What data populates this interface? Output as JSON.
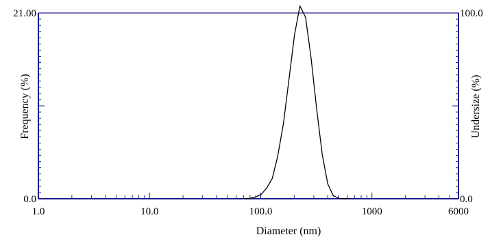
{
  "chart_data": {
    "type": "line",
    "title": "",
    "xlabel": "Diameter (nm)",
    "ylabel_left": "Frequency (%)",
    "ylabel_right": "Undersize (%)",
    "x_scale": "log",
    "xlim": [
      1.0,
      6000
    ],
    "ylim_left": [
      0.0,
      21.0
    ],
    "ylim_right": [
      0.0,
      100.0
    ],
    "x_tick_labels": [
      "1.0",
      "10.0",
      "100.0",
      "1000",
      "6000"
    ],
    "x_tick_values": [
      1.0,
      10.0,
      100.0,
      1000,
      6000
    ],
    "y_left_tick_labels": [
      "0.0",
      "21.00"
    ],
    "y_left_tick_values": [
      0.0,
      21.0
    ],
    "y_right_tick_labels": [
      "0.0",
      "100.0"
    ],
    "y_right_tick_values": [
      0.0,
      100.0
    ],
    "grid": false,
    "legend": "none",
    "series": [
      {
        "axis": "left",
        "color": "#000000",
        "x": [
          72,
          80,
          90,
          101,
          113,
          127,
          142,
          160,
          179,
          201,
          225,
          253,
          283,
          318,
          357,
          400,
          449,
          504,
          565,
          634
        ],
        "y": [
          0.0,
          0.05,
          0.2,
          0.5,
          1.2,
          2.3,
          4.8,
          8.5,
          13.4,
          18.5,
          21.8,
          20.5,
          16.0,
          10.2,
          5.0,
          1.7,
          0.35,
          0.05,
          0.0,
          0.0
        ]
      }
    ]
  },
  "colors": {
    "axis": "#1a1a8a",
    "line": "#000000",
    "background": "#ffffff"
  }
}
